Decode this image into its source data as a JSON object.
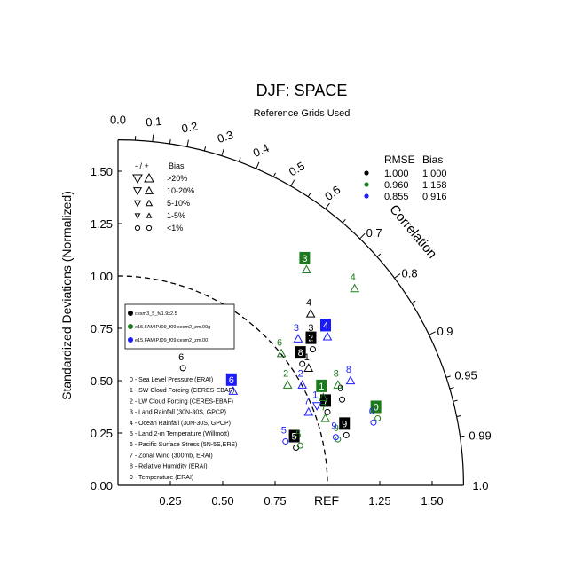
{
  "chart_data": {
    "type": "taylor",
    "title": "DJF: SPACE",
    "subtitle": "Reference Grids Used",
    "ylabel": "Standardized Deviations (Normalized)",
    "angular_label": "Correlation",
    "ref_label": "REF",
    "max_std": 1.65,
    "ref_std": 1.0,
    "y_ticks": [
      "0.00",
      "0.25",
      "0.50",
      "0.75",
      "1.00",
      "1.25",
      "1.50"
    ],
    "y_tick_values": [
      0,
      0.25,
      0.5,
      0.75,
      1.0,
      1.25,
      1.5
    ],
    "x_ticks": [
      "0.25",
      "0.50",
      "0.75",
      "1.25",
      "1.50"
    ],
    "x_tick_values": [
      0.25,
      0.5,
      0.75,
      1.25,
      1.5
    ],
    "top_ticks": [
      "0.0",
      "0.1",
      "0.2",
      "0.3",
      "0.4",
      "0.5",
      "0.6"
    ],
    "top_tick_values": [
      0.0,
      0.1,
      0.2,
      0.3,
      0.4,
      0.5,
      0.6
    ],
    "arc_labels": [
      "0.7",
      "0.8",
      "0.9",
      "0.95",
      "0.99",
      "1.0"
    ],
    "arc_label_values": [
      0.7,
      0.8,
      0.9,
      0.95,
      0.99,
      1.0
    ],
    "bias_legend": {
      "header_sign": "- / +",
      "header_bias": "Bias",
      "rows": [
        ">20%",
        "10-20%",
        "5-10%",
        "1-5%",
        "<1%"
      ]
    },
    "rmse_table": {
      "header_rmse": "RMSE",
      "header_bias": "Bias",
      "rows": [
        {
          "color": "#000000",
          "rmse": "1.000",
          "bias": "1.000"
        },
        {
          "color": "#1b7a1b",
          "rmse": "0.960",
          "bias": "1.158"
        },
        {
          "color": "#1a1aff",
          "rmse": "0.855",
          "bias": "0.916"
        }
      ]
    },
    "case_legend": [
      {
        "color": "#000000",
        "label": "cesm3_5_fv1.9x2.5"
      },
      {
        "color": "#1b7a1b",
        "label": "e15.FAMIP.f09_f09.cesm2_zm.00g"
      },
      {
        "color": "#1a1aff",
        "label": "e15.FAMIP.f09_f09.cesm2_zm.00"
      }
    ],
    "variables": [
      "0 - Sea Level Pressure (ERAI)",
      "1 - SW Cloud Forcing (CERES-EBAF)",
      "2 - LW Cloud Forcing (CERES-EBAF)",
      "3 - Land Rainfall (30N-30S, GPCP)",
      "4 - Ocean Rainfall (30N-30S, GPCP)",
      "5 - Land 2-m Temperature (Willmott)",
      "6 - Pacific Surface Stress (5N-5S,ERS)",
      "7 - Zonal Wind (300mb, ERAI)",
      "8 - Relative Humidity (ERAI)",
      "9 - Temperature (ERAI)"
    ],
    "series": [
      {
        "name": "cesm3_5_fv1.9x2.5",
        "color": "#000000",
        "points": [
          {
            "id": "0",
            "x": 1.07,
            "y": 0.41,
            "sym": "circle",
            "dir": "up",
            "box": false
          },
          {
            "id": "1",
            "x": 0.91,
            "y": 0.56,
            "sym": "tri",
            "dir": "up",
            "box": false
          },
          {
            "id": "2",
            "x": 0.93,
            "y": 0.65,
            "sym": "circle",
            "dir": "up",
            "box": true
          },
          {
            "id": "3",
            "x": 0.93,
            "y": 0.7,
            "sym": "circle",
            "dir": "up",
            "box": false
          },
          {
            "id": "4",
            "x": 0.92,
            "y": 0.82,
            "sym": "tri",
            "dir": "up",
            "box": false
          },
          {
            "id": "5",
            "x": 0.85,
            "y": 0.18,
            "sym": "circle",
            "dir": "up",
            "box": true
          },
          {
            "id": "6",
            "x": 0.31,
            "y": 0.56,
            "sym": "circle",
            "dir": "up",
            "box": false
          },
          {
            "id": "7",
            "x": 1.0,
            "y": 0.35,
            "sym": "circle",
            "dir": "up",
            "box": true
          },
          {
            "id": "8",
            "x": 0.88,
            "y": 0.58,
            "sym": "circle",
            "dir": "up",
            "box": true
          },
          {
            "id": "9",
            "x": 1.09,
            "y": 0.24,
            "sym": "circle",
            "dir": "up",
            "box": true
          }
        ]
      },
      {
        "name": "e15.FAMIP.f09_f09.cesm2_zm.00g",
        "color": "#1b7a1b",
        "points": [
          {
            "id": "0",
            "x": 1.24,
            "y": 0.32,
            "sym": "circle",
            "dir": "up",
            "box": true
          },
          {
            "id": "1",
            "x": 0.98,
            "y": 0.42,
            "sym": "tri",
            "dir": "up",
            "box": true
          },
          {
            "id": "2",
            "x": 0.81,
            "y": 0.48,
            "sym": "tri",
            "dir": "up",
            "box": false
          },
          {
            "id": "3",
            "x": 0.9,
            "y": 1.03,
            "sym": "tri",
            "dir": "up",
            "box": true
          },
          {
            "id": "4",
            "x": 1.13,
            "y": 0.94,
            "sym": "tri",
            "dir": "up",
            "box": false
          },
          {
            "id": "5",
            "x": 0.87,
            "y": 0.19,
            "sym": "circle",
            "dir": "up",
            "box": false
          },
          {
            "id": "6",
            "x": 0.78,
            "y": 0.63,
            "sym": "tri",
            "dir": "up",
            "box": false
          },
          {
            "id": "7",
            "x": 0.99,
            "y": 0.32,
            "sym": "tri",
            "dir": "up",
            "box": false
          },
          {
            "id": "8",
            "x": 1.05,
            "y": 0.48,
            "sym": "tri",
            "dir": "up",
            "box": false
          },
          {
            "id": "9",
            "x": 1.05,
            "y": 0.22,
            "sym": "circle",
            "dir": "up",
            "box": false
          }
        ]
      },
      {
        "name": "e15.FAMIP.f09_f09.cesm2_zm.00",
        "color": "#1a1aff",
        "points": [
          {
            "id": "0",
            "x": 1.22,
            "y": 0.3,
            "sym": "circle",
            "dir": "up",
            "box": false
          },
          {
            "id": "1",
            "x": 0.95,
            "y": 0.38,
            "sym": "tri",
            "dir": "down",
            "box": false
          },
          {
            "id": "2",
            "x": 0.88,
            "y": 0.48,
            "sym": "tri",
            "dir": "up",
            "box": false
          },
          {
            "id": "3",
            "x": 0.86,
            "y": 0.7,
            "sym": "tri",
            "dir": "up",
            "box": false
          },
          {
            "id": "4",
            "x": 1.0,
            "y": 0.71,
            "sym": "tri",
            "dir": "up",
            "box": true
          },
          {
            "id": "5",
            "x": 0.8,
            "y": 0.21,
            "sym": "circle",
            "dir": "up",
            "box": false
          },
          {
            "id": "6",
            "x": 0.55,
            "y": 0.45,
            "sym": "tri",
            "dir": "up",
            "box": true
          },
          {
            "id": "7",
            "x": 0.91,
            "y": 0.35,
            "sym": "tri",
            "dir": "up",
            "box": false
          },
          {
            "id": "8",
            "x": 1.11,
            "y": 0.5,
            "sym": "tri",
            "dir": "up",
            "box": false
          },
          {
            "id": "9",
            "x": 1.04,
            "y": 0.23,
            "sym": "circle",
            "dir": "up",
            "box": false
          }
        ]
      }
    ]
  }
}
